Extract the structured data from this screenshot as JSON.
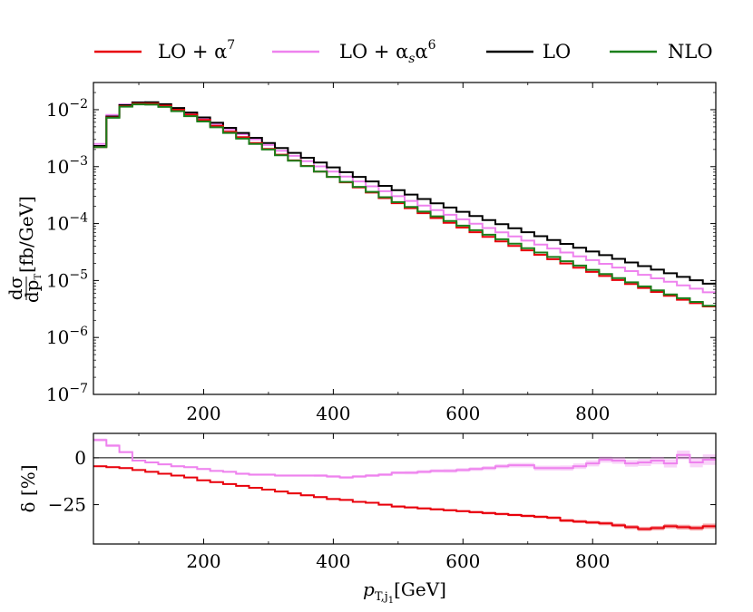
{
  "chart_data": [
    {
      "type": "line",
      "panel": "main",
      "drawstyle": "steps",
      "yscale": "log",
      "xlim": [
        30,
        990
      ],
      "ylim": [
        1e-07,
        0.03
      ],
      "xticks": [
        200,
        400,
        600,
        800
      ],
      "xtick_labels": [
        "200",
        "400",
        "600",
        "800"
      ],
      "yticks": [
        1e-07,
        1e-06,
        1e-05,
        0.0001,
        0.001,
        0.01
      ],
      "ytick_labels": [
        {
          "base": "10",
          "exp": "−7"
        },
        {
          "base": "10",
          "exp": "−6"
        },
        {
          "base": "10",
          "exp": "−5"
        },
        {
          "base": "10",
          "exp": "−4"
        },
        {
          "base": "10",
          "exp": "−3"
        },
        {
          "base": "10",
          "exp": "−2"
        }
      ],
      "ylabel": {
        "frac_num": "dσ",
        "frac_den": "dp",
        "frac_den_sub": "T",
        "unit": "[fb/GeV]"
      },
      "legend": {
        "placement": "top",
        "entries": [
          {
            "key": "lo_a7",
            "label": "LO + α",
            "sup": "7",
            "sub": "",
            "color": "#e8000b"
          },
          {
            "key": "lo_asa6",
            "label": "LO + α",
            "sub": "s",
            "label2": "α",
            "sup": "6",
            "color": "#ee82ee"
          },
          {
            "key": "lo",
            "label": "LO",
            "sup": "",
            "sub": "",
            "color": "#000000"
          },
          {
            "key": "nlo",
            "label": "NLO",
            "sup": "",
            "sub": "",
            "color": "#1a7f1a"
          }
        ]
      },
      "bin_edges": [
        30,
        50,
        70,
        90,
        110,
        130,
        150,
        170,
        190,
        210,
        230,
        250,
        270,
        290,
        310,
        330,
        350,
        370,
        390,
        410,
        430,
        450,
        470,
        490,
        510,
        530,
        550,
        570,
        590,
        610,
        630,
        650,
        670,
        690,
        710,
        730,
        750,
        770,
        790,
        810,
        830,
        850,
        870,
        890,
        910,
        930,
        950,
        970,
        990
      ],
      "series": [
        {
          "name": "LO + α^7",
          "key": "lo_a7",
          "color": "#e8000b",
          "values": [
            0.0022,
            0.0073,
            0.0115,
            0.0128,
            0.0128,
            0.0118,
            0.01,
            0.0082,
            0.0066,
            0.0052,
            0.0041,
            0.0033,
            0.0026,
            0.00205,
            0.00162,
            0.00129,
            0.00103,
            0.00082,
            0.00066,
            0.00053,
            0.00043,
            0.00035,
            0.00028,
            0.000228,
            0.000186,
            0.000152,
            0.000125,
            0.000103,
            8.5e-05,
            7.05e-05,
            5.85e-05,
            4.87e-05,
            4.05e-05,
            3.38e-05,
            2.83e-05,
            2.37e-05,
            1.99e-05,
            1.68e-05,
            1.42e-05,
            1.2e-05,
            1.02e-05,
            8.7e-06,
            7.4e-06,
            6.3e-06,
            5.4e-06,
            4.6e-06,
            4e-06,
            3.5e-06
          ]
        },
        {
          "name": "LO + α_s α^6",
          "key": "lo_asa6",
          "color": "#ee82ee",
          "values": [
            0.0025,
            0.0081,
            0.0124,
            0.0135,
            0.0133,
            0.0122,
            0.0104,
            0.0086,
            0.007,
            0.0056,
            0.0045,
            0.0037,
            0.003,
            0.0024,
            0.0019,
            0.00155,
            0.00125,
            0.00101,
            0.00082,
            0.00067,
            0.00055,
            0.00045,
            0.00037,
            0.000303,
            0.00025,
            0.000207,
            0.000172,
            0.000143,
            0.000119,
            9.95e-05,
            8.35e-05,
            7.03e-05,
            5.94e-05,
            5.03e-05,
            4.27e-05,
            3.64e-05,
            3.11e-05,
            2.66e-05,
            2.28e-05,
            1.96e-05,
            1.69e-05,
            1.46e-05,
            1.26e-05,
            1.09e-05,
            9.5e-06,
            8.2e-06,
            7.2e-06,
            6.2e-06
          ]
        },
        {
          "name": "LO",
          "key": "lo",
          "color": "#000000",
          "values": [
            0.0023,
            0.0076,
            0.012,
            0.0134,
            0.0135,
            0.0125,
            0.0107,
            0.0089,
            0.0073,
            0.0059,
            0.0048,
            0.0039,
            0.0032,
            0.0026,
            0.00212,
            0.00174,
            0.00143,
            0.00118,
            0.00097,
            0.0008,
            0.00066,
            0.00055,
            0.00046,
            0.000385,
            0.000322,
            0.00027,
            0.000227,
            0.000191,
            0.000161,
            0.000136,
            0.000115,
            9.75e-05,
            8.28e-05,
            7.05e-05,
            6.01e-05,
            5.14e-05,
            4.4e-05,
            3.77e-05,
            3.24e-05,
            2.79e-05,
            2.4e-05,
            2.07e-05,
            1.79e-05,
            1.55e-05,
            1.34e-05,
            1.16e-05,
            1.01e-05,
            8.8e-06
          ]
        },
        {
          "name": "NLO",
          "key": "nlo",
          "color": "#1a7f1a",
          "values": [
            0.0022,
            0.0072,
            0.0113,
            0.0124,
            0.0123,
            0.0112,
            0.0094,
            0.0077,
            0.0062,
            0.0049,
            0.0039,
            0.0031,
            0.0025,
            0.002,
            0.00158,
            0.00127,
            0.00102,
            0.00082,
            0.00066,
            0.00054,
            0.00044,
            0.00036,
            0.00029,
            0.000238,
            0.000196,
            0.000162,
            0.000134,
            0.000111,
            9.2e-05,
            7.65e-05,
            6.37e-05,
            5.31e-05,
            4.43e-05,
            3.7e-05,
            3.1e-05,
            2.6e-05,
            2.18e-05,
            1.83e-05,
            1.54e-05,
            1.3e-05,
            1.1e-05,
            9.3e-06,
            7.9e-06,
            6.7e-06,
            5.7e-06,
            4.9e-06,
            4.2e-06,
            3.6e-06
          ]
        }
      ]
    },
    {
      "type": "line",
      "panel": "ratio",
      "drawstyle": "steps",
      "xlim": [
        30,
        990
      ],
      "ylim": [
        -46,
        13
      ],
      "xticks": [
        200,
        400,
        600,
        800
      ],
      "xtick_labels": [
        "200",
        "400",
        "600",
        "800"
      ],
      "yticks": [
        0,
        -25
      ],
      "ytick_labels": [
        "0",
        "−25"
      ],
      "ylabel": "δ [%]",
      "xlabel": {
        "symbol": "p",
        "sub": "T,j",
        "subsub": "1",
        "unit": "[GeV]"
      },
      "reference_line": 0,
      "bin_edges": [
        30,
        50,
        70,
        90,
        110,
        130,
        150,
        170,
        190,
        210,
        230,
        250,
        270,
        290,
        310,
        330,
        350,
        370,
        390,
        410,
        430,
        450,
        470,
        490,
        510,
        530,
        550,
        570,
        590,
        610,
        630,
        650,
        670,
        690,
        710,
        730,
        750,
        770,
        790,
        810,
        830,
        850,
        870,
        890,
        910,
        930,
        950,
        970,
        990
      ],
      "series": [
        {
          "name": "δ α_s α^6",
          "key": "lo_asa6",
          "color": "#ee82ee",
          "values": [
            9.5,
            6.5,
            3,
            -1.5,
            -2.5,
            -3.5,
            -4.5,
            -5,
            -6,
            -7,
            -7.5,
            -8.5,
            -9,
            -9,
            -9.5,
            -9.5,
            -9.5,
            -9.5,
            -10,
            -10.5,
            -10,
            -9.5,
            -9,
            -8,
            -8,
            -7.5,
            -7,
            -7,
            -6.5,
            -6,
            -5.5,
            -4.5,
            -4,
            -4,
            -5.5,
            -5.5,
            -5.5,
            -4.5,
            -3,
            -1,
            -1.5,
            -3,
            -2.5,
            -1.5,
            -3,
            1.5,
            -2.5,
            -1
          ],
          "band": [
            0.8,
            0.8,
            0.6,
            0.5,
            0.5,
            0.5,
            0.5,
            0.5,
            0.5,
            0.5,
            0.5,
            0.6,
            0.6,
            0.6,
            0.6,
            0.6,
            0.6,
            0.7,
            0.7,
            0.7,
            0.7,
            0.8,
            0.8,
            0.8,
            0.9,
            0.9,
            0.9,
            1.0,
            1.0,
            1.0,
            1.1,
            1.1,
            1.2,
            1.2,
            1.3,
            1.3,
            1.4,
            1.5,
            1.6,
            1.6,
            1.7,
            1.8,
            1.9,
            2.0,
            2.2,
            2.4,
            2.6,
            2.8
          ]
        },
        {
          "name": "δ α^7",
          "key": "lo_a7",
          "color": "#e8000b",
          "values": [
            -4.5,
            -5,
            -5.5,
            -6.5,
            -7.5,
            -8.5,
            -9.5,
            -10.5,
            -12,
            -13,
            -14,
            -15,
            -16,
            -17,
            -18,
            -19,
            -20,
            -21,
            -22,
            -22.5,
            -23.5,
            -24,
            -25,
            -26,
            -26.5,
            -27,
            -27.5,
            -28,
            -28.5,
            -29,
            -29.5,
            -30,
            -30.5,
            -31,
            -31.5,
            -32,
            -33.5,
            -34,
            -34.5,
            -35,
            -36,
            -37,
            -38,
            -37.5,
            -36.5,
            -37,
            -37.5,
            -36.5
          ],
          "band": [
            0.4,
            0.4,
            0.4,
            0.4,
            0.4,
            0.4,
            0.4,
            0.4,
            0.4,
            0.4,
            0.4,
            0.4,
            0.4,
            0.4,
            0.5,
            0.5,
            0.5,
            0.5,
            0.5,
            0.5,
            0.5,
            0.5,
            0.5,
            0.6,
            0.6,
            0.6,
            0.6,
            0.6,
            0.6,
            0.7,
            0.7,
            0.7,
            0.7,
            0.8,
            0.8,
            0.8,
            0.9,
            0.9,
            0.9,
            1.0,
            1.0,
            1.1,
            1.1,
            1.2,
            1.2,
            1.3,
            1.3,
            1.4
          ]
        }
      ]
    }
  ]
}
